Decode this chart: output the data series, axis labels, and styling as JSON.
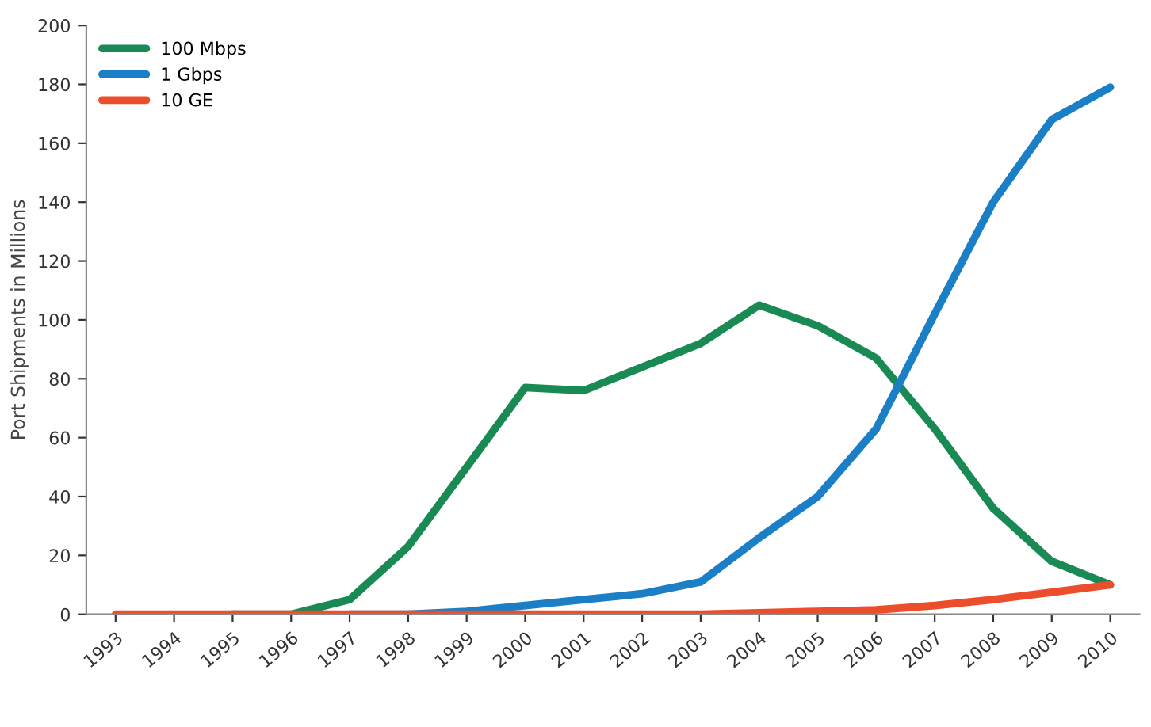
{
  "chart_data": {
    "type": "line",
    "ylabel": "Port Shipments in Millions",
    "categories": [
      "1993",
      "1994",
      "1995",
      "1996",
      "1997",
      "1998",
      "1999",
      "2000",
      "2001",
      "2002",
      "2003",
      "2004",
      "2005",
      "2006",
      "2007",
      "2008",
      "2009",
      "2010"
    ],
    "series": [
      {
        "name": "100 Mbps",
        "color": "#1a8a55",
        "values": [
          null,
          null,
          0,
          0,
          5,
          23,
          50,
          77,
          76,
          84,
          92,
          105,
          98,
          87,
          63,
          36,
          18,
          10
        ]
      },
      {
        "name": "1 Gbps",
        "color": "#1b7fc7",
        "values": [
          null,
          null,
          null,
          null,
          0,
          0,
          1,
          3,
          5,
          7,
          11,
          26,
          40,
          63,
          102,
          140,
          168,
          179
        ]
      },
      {
        "name": "10 GE",
        "color": "#ec4e2b",
        "values": [
          0,
          0,
          0,
          0,
          0,
          0,
          0,
          0,
          0,
          0,
          0,
          0.5,
          1,
          1.5,
          3,
          5,
          7.5,
          10
        ]
      }
    ],
    "ylim": [
      0,
      200
    ],
    "yticks": [
      0,
      20,
      40,
      60,
      80,
      100,
      120,
      140,
      160,
      180,
      200
    ],
    "legend": "top left",
    "grid": false,
    "marker": "none",
    "line_style": "solid"
  }
}
